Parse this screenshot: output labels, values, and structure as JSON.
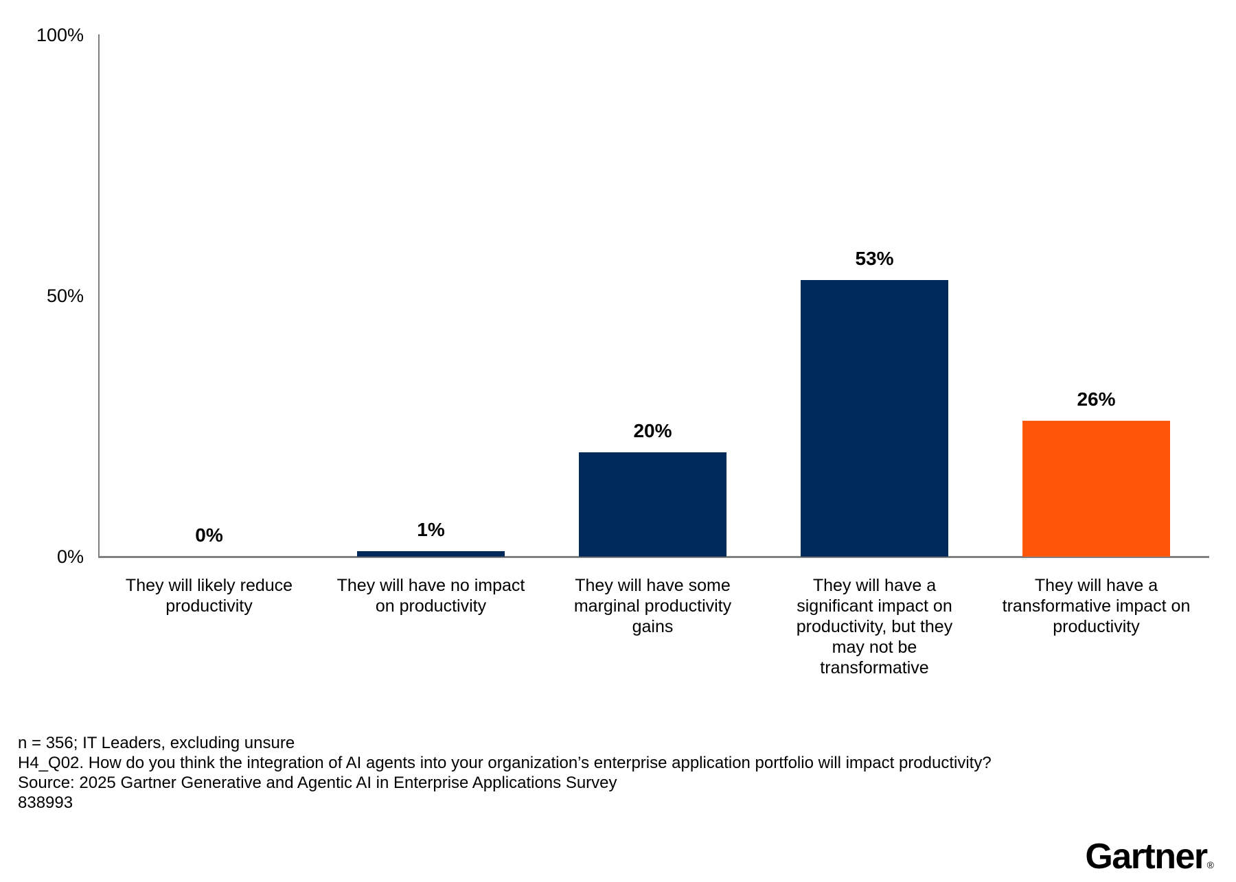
{
  "chart_data": {
    "type": "bar",
    "categories": [
      [
        "They will likely reduce",
        "productivity"
      ],
      [
        "They will have no impact",
        "on productivity"
      ],
      [
        "They will have some",
        "marginal productivity",
        "gains"
      ],
      [
        "They will have a",
        "significant impact on",
        "productivity, but they",
        "may not be",
        "transformative"
      ],
      [
        "They will have a",
        "transformative impact on",
        "productivity"
      ]
    ],
    "values": [
      0,
      1,
      20,
      53,
      26
    ],
    "value_labels": [
      "0%",
      "1%",
      "20%",
      "53%",
      "26%"
    ],
    "bar_colors": [
      "#012a5c",
      "#012a5c",
      "#012a5c",
      "#012a5c",
      "#ff5608"
    ],
    "title": "",
    "xlabel": "",
    "ylabel": "",
    "ylim": [
      0,
      100
    ],
    "yticks": [
      {
        "label": "0%",
        "value": 0
      },
      {
        "label": "50%",
        "value": 50
      },
      {
        "label": "100%",
        "value": 100
      }
    ],
    "grid": false,
    "legend": "none"
  },
  "colors": {
    "bar_navy": "#012a5c",
    "bar_orange": "#ff5608",
    "axis_gray": "#7f7f7f",
    "logo_navy": "#0a2a54"
  },
  "footer": {
    "line1": "n = 356; IT Leaders, excluding unsure",
    "line2": "H4_Q02. How do you think the integration of AI agents into your organization’s enterprise application portfolio will impact productivity?",
    "line3": "Source: 2025 Gartner Generative and Agentic AI in Enterprise Applications Survey",
    "line4": "838993"
  },
  "branding": {
    "logo_text": "Gartner",
    "registered_mark": "®"
  }
}
